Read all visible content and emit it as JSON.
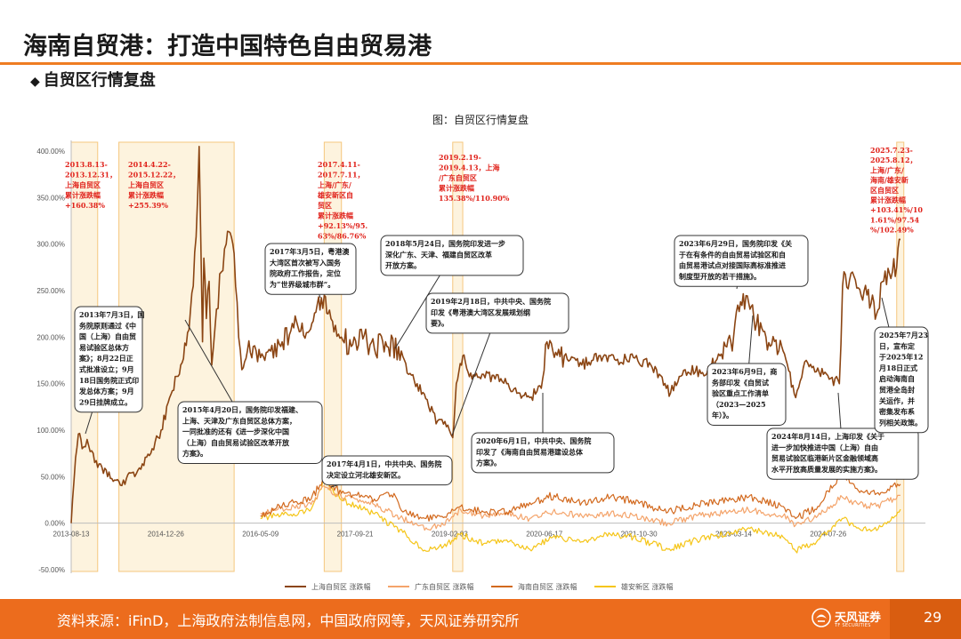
{
  "header": {
    "title": "海南自贸港：打造中国特色自由贸易港",
    "subtitle": "自贸区行情复盘",
    "subtitle_bullet": "◆"
  },
  "figure_title": "图：自贸区行情复盘",
  "footer": {
    "source": "资料来源：iFinD，上海政府法制信息网，中国政府网等，天风证券研究所",
    "logo_text": "天风证券",
    "logo_sub": "TF SECURITIES",
    "page": "29"
  },
  "colors": {
    "accent": "#ef7d22",
    "footer_bg": "#ec6c1d",
    "shanghai": "#8b4513",
    "guangdong": "#f4a46b",
    "hainan": "#d2691e",
    "xiongan": "#f5c518",
    "highlight_fill": "#fdf3de",
    "highlight_border": "#f5c77e",
    "red_text": "#e0231c"
  },
  "chart_data": {
    "type": "line",
    "x_ticks": [
      "2013-08-13",
      "2014-12-26",
      "2016-05-09",
      "2017-09-21",
      "2019-02-03",
      "2020-06-17",
      "2021-10-30",
      "2023-03-14",
      "2024-07-26"
    ],
    "ylim": [
      -50,
      400
    ],
    "y_ticks": [
      "-50.00%",
      "0.00%",
      "50.00%",
      "100.00%",
      "150.00%",
      "200.00%",
      "250.00%",
      "300.00%",
      "350.00%",
      "400.00%"
    ],
    "grid": false,
    "legend_position": "bottom",
    "series": [
      {
        "name": "上海自贸区 涨跌幅",
        "key": "shanghai",
        "start": "2013-08-13",
        "points": [
          [
            "2013-08-13",
            0
          ],
          [
            "2013-09-05",
            70
          ],
          [
            "2013-09-20",
            96
          ],
          [
            "2013-10-10",
            80
          ],
          [
            "2013-11-05",
            90
          ],
          [
            "2013-12-31",
            60
          ],
          [
            "2014-03-01",
            55
          ],
          [
            "2014-04-22",
            45
          ],
          [
            "2014-06-01",
            48
          ],
          [
            "2014-07-15",
            50
          ],
          [
            "2014-09-01",
            62
          ],
          [
            "2014-10-15",
            80
          ],
          [
            "2014-12-01",
            100
          ],
          [
            "2015-01-15",
            135
          ],
          [
            "2015-03-15",
            170
          ],
          [
            "2015-04-20",
            205
          ],
          [
            "2015-05-20",
            255
          ],
          [
            "2015-06-12",
            350
          ],
          [
            "2015-06-20",
            405
          ],
          [
            "2015-07-08",
            195
          ],
          [
            "2015-07-15",
            285
          ],
          [
            "2015-07-28",
            220
          ],
          [
            "2015-08-12",
            260
          ],
          [
            "2015-08-26",
            170
          ],
          [
            "2015-09-20",
            230
          ],
          [
            "2015-10-15",
            270
          ],
          [
            "2015-11-10",
            300
          ],
          [
            "2015-12-01",
            312
          ],
          [
            "2015-12-22",
            290
          ],
          [
            "2016-01-15",
            200
          ],
          [
            "2016-02-01",
            165
          ],
          [
            "2016-03-01",
            185
          ],
          [
            "2016-04-01",
            190
          ],
          [
            "2016-06-01",
            175
          ],
          [
            "2016-07-01",
            185
          ],
          [
            "2016-09-01",
            195
          ],
          [
            "2016-11-01",
            210
          ],
          [
            "2016-12-15",
            215
          ],
          [
            "2017-01-15",
            205
          ],
          [
            "2017-03-05",
            235
          ],
          [
            "2017-04-11",
            245
          ],
          [
            "2017-05-01",
            225
          ],
          [
            "2017-07-11",
            200
          ],
          [
            "2017-09-01",
            190
          ],
          [
            "2017-11-01",
            198
          ],
          [
            "2018-01-01",
            188
          ],
          [
            "2018-03-01",
            195
          ],
          [
            "2018-05-24",
            185
          ],
          [
            "2018-07-01",
            160
          ],
          [
            "2018-08-15",
            150
          ],
          [
            "2018-10-15",
            125
          ],
          [
            "2018-12-01",
            110
          ],
          [
            "2019-02-01",
            100
          ],
          [
            "2019-02-19",
            92
          ],
          [
            "2019-03-10",
            150
          ],
          [
            "2019-04-13",
            180
          ],
          [
            "2019-06-01",
            155
          ],
          [
            "2019-08-01",
            160
          ],
          [
            "2019-10-01",
            155
          ],
          [
            "2019-12-01",
            150
          ],
          [
            "2020-02-01",
            140
          ],
          [
            "2020-04-01",
            135
          ],
          [
            "2020-06-01",
            145
          ],
          [
            "2020-07-01",
            195
          ],
          [
            "2020-08-01",
            185
          ],
          [
            "2020-10-01",
            180
          ],
          [
            "2021-01-01",
            170
          ],
          [
            "2021-04-01",
            180
          ],
          [
            "2021-07-01",
            175
          ],
          [
            "2021-10-01",
            178
          ],
          [
            "2022-01-01",
            170
          ],
          [
            "2022-04-15",
            140
          ],
          [
            "2022-07-01",
            165
          ],
          [
            "2022-10-01",
            162
          ],
          [
            "2023-01-01",
            180
          ],
          [
            "2023-03-14",
            200
          ],
          [
            "2023-04-20",
            238
          ],
          [
            "2023-06-09",
            230
          ],
          [
            "2023-06-29",
            220
          ],
          [
            "2023-09-01",
            200
          ],
          [
            "2023-12-01",
            185
          ],
          [
            "2024-02-05",
            135
          ],
          [
            "2024-04-01",
            175
          ],
          [
            "2024-07-01",
            160
          ],
          [
            "2024-09-23",
            150
          ],
          [
            "2024-10-10",
            255
          ],
          [
            "2024-12-01",
            270
          ],
          [
            "2025-02-01",
            250
          ],
          [
            "2025-04-08",
            225
          ],
          [
            "2025-05-15",
            260
          ],
          [
            "2025-06-30",
            270
          ],
          [
            "2025-07-23",
            275
          ],
          [
            "2025-08-12",
            305
          ]
        ]
      },
      {
        "name": "广东自贸区 涨跌幅",
        "key": "guangdong",
        "start": "2016-05-09",
        "points": [
          [
            "2016-05-09",
            10
          ],
          [
            "2016-08-01",
            14
          ],
          [
            "2016-11-01",
            18
          ],
          [
            "2017-02-01",
            20
          ],
          [
            "2017-04-11",
            40
          ],
          [
            "2017-07-11",
            28
          ],
          [
            "2017-10-01",
            26
          ],
          [
            "2018-01-01",
            20
          ],
          [
            "2018-06-01",
            5
          ],
          [
            "2018-10-01",
            -5
          ],
          [
            "2019-01-01",
            -2
          ],
          [
            "2019-04-01",
            15
          ],
          [
            "2019-08-01",
            8
          ],
          [
            "2019-12-01",
            10
          ],
          [
            "2020-04-01",
            5
          ],
          [
            "2020-08-01",
            12
          ],
          [
            "2021-01-01",
            8
          ],
          [
            "2021-06-01",
            10
          ],
          [
            "2021-10-01",
            8
          ],
          [
            "2022-04-01",
            0
          ],
          [
            "2022-09-01",
            8
          ],
          [
            "2023-03-01",
            12
          ],
          [
            "2023-06-01",
            14
          ],
          [
            "2023-12-01",
            8
          ],
          [
            "2024-02-05",
            -2
          ],
          [
            "2024-06-01",
            8
          ],
          [
            "2024-10-08",
            28
          ],
          [
            "2025-01-01",
            20
          ],
          [
            "2025-04-08",
            18
          ],
          [
            "2025-08-12",
            30
          ]
        ]
      },
      {
        "name": "海南自贸区 涨跌幅",
        "key": "hainan",
        "start": "2016-05-09",
        "points": [
          [
            "2016-05-09",
            8
          ],
          [
            "2016-08-01",
            16
          ],
          [
            "2016-11-01",
            22
          ],
          [
            "2017-02-01",
            26
          ],
          [
            "2017-04-11",
            48
          ],
          [
            "2017-07-11",
            32
          ],
          [
            "2017-10-01",
            30
          ],
          [
            "2018-01-01",
            26
          ],
          [
            "2018-04-15",
            32
          ],
          [
            "2018-06-01",
            12
          ],
          [
            "2018-10-01",
            5
          ],
          [
            "2019-01-01",
            6
          ],
          [
            "2019-04-01",
            18
          ],
          [
            "2019-08-01",
            12
          ],
          [
            "2019-12-01",
            12
          ],
          [
            "2020-06-01",
            25
          ],
          [
            "2020-07-01",
            30
          ],
          [
            "2021-01-01",
            22
          ],
          [
            "2021-06-01",
            28
          ],
          [
            "2021-10-01",
            24
          ],
          [
            "2022-04-01",
            12
          ],
          [
            "2022-09-01",
            20
          ],
          [
            "2023-03-01",
            25
          ],
          [
            "2023-06-01",
            28
          ],
          [
            "2023-12-01",
            18
          ],
          [
            "2024-02-05",
            5
          ],
          [
            "2024-06-01",
            18
          ],
          [
            "2024-10-08",
            55
          ],
          [
            "2025-01-01",
            35
          ],
          [
            "2025-04-08",
            32
          ],
          [
            "2025-08-12",
            42
          ]
        ]
      },
      {
        "name": "雄安新区 涨跌幅",
        "key": "xiongan",
        "start": "2016-05-09",
        "points": [
          [
            "2016-05-09",
            5
          ],
          [
            "2016-08-01",
            8
          ],
          [
            "2016-11-01",
            10
          ],
          [
            "2017-02-01",
            15
          ],
          [
            "2017-04-11",
            45
          ],
          [
            "2017-07-11",
            25
          ],
          [
            "2017-10-01",
            18
          ],
          [
            "2018-01-01",
            10
          ],
          [
            "2018-06-01",
            -10
          ],
          [
            "2018-10-01",
            -30
          ],
          [
            "2019-01-01",
            -25
          ],
          [
            "2019-04-01",
            -12
          ],
          [
            "2019-08-01",
            -22
          ],
          [
            "2019-12-01",
            -18
          ],
          [
            "2020-04-01",
            -28
          ],
          [
            "2020-08-01",
            -15
          ],
          [
            "2021-01-01",
            -20
          ],
          [
            "2021-06-01",
            -12
          ],
          [
            "2021-10-01",
            -15
          ],
          [
            "2022-04-01",
            -28
          ],
          [
            "2022-09-01",
            -18
          ],
          [
            "2023-03-01",
            -10
          ],
          [
            "2023-06-01",
            -5
          ],
          [
            "2023-12-01",
            -15
          ],
          [
            "2024-02-05",
            -30
          ],
          [
            "2024-06-01",
            -18
          ],
          [
            "2024-10-08",
            5
          ],
          [
            "2025-01-01",
            -5
          ],
          [
            "2025-04-08",
            -8
          ],
          [
            "2025-08-12",
            15
          ]
        ]
      }
    ],
    "highlight_periods": [
      {
        "from": "2013-08-13",
        "to": "2013-12-31"
      },
      {
        "from": "2014-04-22",
        "to": "2015-12-22"
      },
      {
        "from": "2017-04-11",
        "to": "2017-07-11"
      },
      {
        "from": "2019-02-19",
        "to": "2019-04-13"
      },
      {
        "from": "2025-07-23",
        "to": "2025-08-12"
      }
    ],
    "red_labels": [
      {
        "text": [
          "2013.8.13-",
          "2013.12.31，",
          "上海自贸区",
          "累计涨跌幅",
          "+160.38%"
        ]
      },
      {
        "text": [
          "2014.4.22-",
          "2015.12.22，",
          "上海自贸区",
          "累计涨跌幅",
          "+255.39%"
        ]
      },
      {
        "text": [
          "2017.4.11-",
          "2017.7.11，",
          "上海/广东/",
          "雄安新区自",
          "贸区",
          "累计涨跌幅",
          "+92.13%/95.",
          "63%/86.76%"
        ]
      },
      {
        "text": [
          "2019.2.19-",
          "2019.4.13，上海",
          "/广东自贸区",
          "累计涨跌幅",
          "135.38%/110.90%"
        ]
      },
      {
        "text": [
          "2025.7.23-",
          "2025.8.12，",
          "上海/广东/",
          "海南/雄安新",
          "区自贸区",
          "累计涨跌幅",
          "+103.41%/10",
          "1.61%/97.54",
          "%/102.49%"
        ]
      }
    ],
    "annotations": [
      {
        "text": [
          "2013年7月3日，国",
          "务院原则通过《中",
          "国（上海）自由贸",
          "易试验区总体方",
          "案》；8月22日正",
          "式批准设立；9月",
          "18日国务院正式印",
          "发总体方案；9月",
          "29日挂牌成立。"
        ]
      },
      {
        "text": [
          "2015年4月20日，国务院印发福建、",
          "上海、天津及广东自贸区总体方案，",
          "一同批准的还有《进一步深化中国",
          "（上海）自由贸易试验区改革开放",
          "方案》。"
        ]
      },
      {
        "text": [
          "2017年3月5日，粤港澳",
          "大湾区首次被写入国务",
          "院政府工作报告，定位",
          "为“世界级城市群”。"
        ]
      },
      {
        "text": [
          "2017年4月1日，中共中央、国务院",
          "决定设立河北雄安新区。"
        ]
      },
      {
        "text": [
          "2018年5月24日，国务院印发进一步",
          "深化广东、天津、福建自贸区改革",
          "开放方案。"
        ]
      },
      {
        "text": [
          "2019年2月18日，中共中央、国务院",
          "印发《粤港澳大湾区发展规划纲",
          "要》。"
        ]
      },
      {
        "text": [
          "2020年6月1日，中共中央、国务院",
          "印发了《海南自由贸易港建设总体",
          "方案》。"
        ]
      },
      {
        "text": [
          "2023年6月29日，国务院印发《关",
          "于在有条件的自由贸易试验区和自",
          "由贸易港试点对接国际高标准推进",
          "制度型开放的若干措施》。"
        ]
      },
      {
        "text": [
          "2023年6月9日，商",
          "务部印发《自贸试",
          "验区重点工作清单",
          "（2023—2025",
          "年）》。"
        ]
      },
      {
        "text": [
          "2024年8月14日，上海印发《关于",
          "进一步加快推进中国（上海）自由",
          "贸易试验区临港新片区金融领域高",
          "水平开放高质量发展的实施方案》。"
        ]
      },
      {
        "text": [
          "2025年7月23",
          "日，宣布定",
          "于2025年12",
          "月18日正式",
          "启动海南自",
          "贸港全岛封",
          "关运作，并",
          "密集发布系",
          "列相关政策。"
        ]
      }
    ]
  }
}
